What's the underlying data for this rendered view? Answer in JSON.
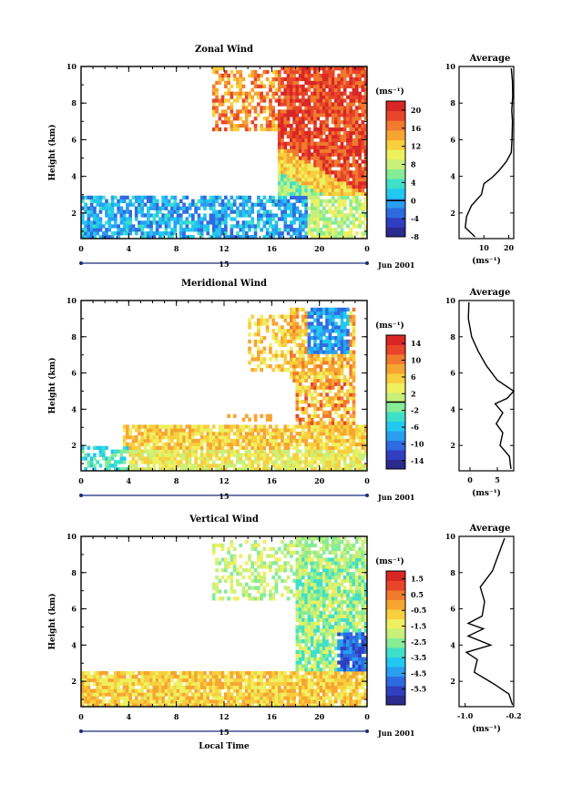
{
  "figure": {
    "date_label": "Jun 2001",
    "day_label": "15",
    "xlabel": "Local Time",
    "ylabel": "Height (km)",
    "colorbar_unit": "(ms⁻¹)",
    "avg_title": "Average",
    "avg_unit": "(ms⁻¹)"
  },
  "colormap": [
    "#2b2a8f",
    "#2f3fc0",
    "#2f6be0",
    "#2a9ef0",
    "#22c8f0",
    "#3ee0c8",
    "#86ec96",
    "#c8f07a",
    "#eef060",
    "#f8cf3e",
    "#f7a532",
    "#f07a2e",
    "#e8452a",
    "#d82626"
  ],
  "chart_data": [
    {
      "type": "heatmap",
      "title": "Zonal Wind",
      "xlabel": "Local Time",
      "ylabel": "Height (km)",
      "x_ticks": [
        "0",
        "4",
        "8",
        "12",
        "16",
        "20",
        "0"
      ],
      "y_ticks": [
        "2",
        "4",
        "6",
        "8",
        "10"
      ],
      "xlim": [
        0,
        24
      ],
      "ylim": [
        0.6,
        10
      ],
      "colorbar": {
        "min": -8,
        "max": 22,
        "ticks": [
          "20",
          "16",
          "12",
          "8",
          "4",
          "0",
          "-4",
          "-8"
        ],
        "zero_line": 0
      },
      "average": {
        "xlim": [
          0,
          22
        ],
        "x_ticks": [
          "10",
          "20"
        ],
        "profile": [
          [
            6.4,
            0.7
          ],
          [
            2.5,
            1.2
          ],
          [
            3,
            1.8
          ],
          [
            5,
            2.4
          ],
          [
            9,
            3.0
          ],
          [
            10,
            3.6
          ],
          [
            13,
            3.9
          ],
          [
            16,
            4.3
          ],
          [
            19,
            4.8
          ],
          [
            21,
            5.3
          ],
          [
            21.3,
            6
          ],
          [
            21.5,
            7
          ],
          [
            21.2,
            7.6
          ],
          [
            21.6,
            8.4
          ],
          [
            21.5,
            9.2
          ],
          [
            21,
            9.9
          ]
        ]
      }
    },
    {
      "type": "heatmap",
      "title": "Meridional Wind",
      "xlabel": "Local Time",
      "ylabel": "Height (km)",
      "x_ticks": [
        "0",
        "4",
        "8",
        "12",
        "16",
        "20",
        "0"
      ],
      "y_ticks": [
        "2",
        "4",
        "6",
        "8",
        "10"
      ],
      "xlim": [
        0,
        24
      ],
      "ylim": [
        0.6,
        10
      ],
      "colorbar": {
        "min": -16,
        "max": 16,
        "ticks": [
          "14",
          "10",
          "6",
          "2",
          "-2",
          "-6",
          "-10",
          "-14"
        ],
        "zero_line": 0
      },
      "average": {
        "xlim": [
          -2,
          8
        ],
        "x_ticks": [
          "0",
          "5"
        ],
        "profile": [
          [
            7.5,
            0.7
          ],
          [
            7.2,
            1.4
          ],
          [
            5.5,
            2
          ],
          [
            6,
            2.7
          ],
          [
            4.8,
            3.2
          ],
          [
            6,
            3.8
          ],
          [
            4.6,
            4.3
          ],
          [
            6.8,
            4.6
          ],
          [
            8,
            5
          ],
          [
            5,
            5.6
          ],
          [
            3,
            6.4
          ],
          [
            1.5,
            7.2
          ],
          [
            0.3,
            8
          ],
          [
            -0.3,
            9
          ],
          [
            -0.2,
            9.9
          ]
        ]
      }
    },
    {
      "type": "heatmap",
      "title": "Vertical Wind",
      "xlabel": "Local Time",
      "ylabel": "Height (km)",
      "x_ticks": [
        "0",
        "4",
        "8",
        "12",
        "16",
        "20",
        "0"
      ],
      "y_ticks": [
        "2",
        "4",
        "6",
        "8",
        "10"
      ],
      "xlim": [
        0,
        24
      ],
      "ylim": [
        0.6,
        10
      ],
      "colorbar": {
        "min": -6.5,
        "max": 2,
        "ticks": [
          "1.5",
          "0.5",
          "-0.5",
          "-1.5",
          "-2.5",
          "-3.5",
          "-4.5",
          "-5.5"
        ],
        "zero_line": null
      },
      "average": {
        "xlim": [
          -1.1,
          -0.2
        ],
        "x_ticks": [
          "-1.0",
          "-0.2"
        ],
        "profile": [
          [
            -0.22,
            0.7
          ],
          [
            -0.28,
            1.3
          ],
          [
            -0.55,
            1.9
          ],
          [
            -0.85,
            2.5
          ],
          [
            -0.8,
            3.2
          ],
          [
            -0.98,
            3.6
          ],
          [
            -0.58,
            4
          ],
          [
            -0.95,
            4.5
          ],
          [
            -0.7,
            4.9
          ],
          [
            -0.95,
            5.2
          ],
          [
            -0.72,
            5.6
          ],
          [
            -0.68,
            6.4
          ],
          [
            -0.75,
            7.2
          ],
          [
            -0.55,
            8.1
          ],
          [
            -0.45,
            9
          ],
          [
            -0.35,
            9.9
          ]
        ]
      }
    }
  ]
}
